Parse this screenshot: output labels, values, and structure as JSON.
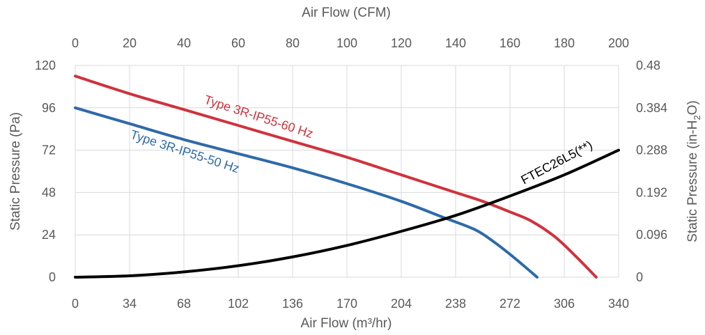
{
  "chart_data": {
    "type": "line",
    "x_bottom_label": "Air Flow (m³/hr)",
    "x_top_label": "Air Flow (CFM)",
    "y_left_label": "Static Pressure (Pa)",
    "y_right_label_main": "Static Pressure (in-H",
    "y_right_label_sub": "2",
    "y_right_label_end": "O)",
    "x_bottom_ticks": [
      "0",
      "34",
      "68",
      "102",
      "136",
      "170",
      "204",
      "238",
      "272",
      "306",
      "340"
    ],
    "x_top_ticks": [
      "0",
      "20",
      "40",
      "60",
      "80",
      "100",
      "120",
      "140",
      "160",
      "180",
      "200"
    ],
    "y_left_ticks": [
      "0",
      "24",
      "48",
      "72",
      "96",
      "120"
    ],
    "y_right_ticks": [
      "0",
      "0.096",
      "0.192",
      "0.288",
      "0.384",
      "0.48"
    ],
    "xlim": [
      0,
      340
    ],
    "ylim": [
      0,
      120
    ],
    "grid": true,
    "series": [
      {
        "name": "Type 3R-IP55-60 Hz",
        "color": "#d0323c",
        "x": [
          0,
          34,
          68,
          102,
          136,
          170,
          204,
          238,
          255,
          272,
          285,
          300,
          313,
          326
        ],
        "y": [
          114,
          104,
          95,
          86,
          77,
          68,
          58,
          48,
          43,
          37,
          32,
          23,
          12,
          0
        ]
      },
      {
        "name": "Type 3R-IP55-50 Hz",
        "color": "#2e6aa8",
        "x": [
          0,
          34,
          68,
          102,
          136,
          170,
          204,
          230,
          250,
          262,
          272,
          280,
          289
        ],
        "y": [
          96,
          87,
          78,
          70,
          62,
          53,
          43,
          34,
          27,
          20,
          13,
          7,
          0
        ]
      },
      {
        "name": "FTEC26L5(**)",
        "color": "#000000",
        "x": [
          0,
          34,
          68,
          102,
          136,
          170,
          204,
          238,
          272,
          306,
          340
        ],
        "y": [
          0,
          0.8,
          3,
          6.5,
          11.5,
          18,
          26,
          35,
          46,
          58,
          72
        ]
      }
    ]
  }
}
